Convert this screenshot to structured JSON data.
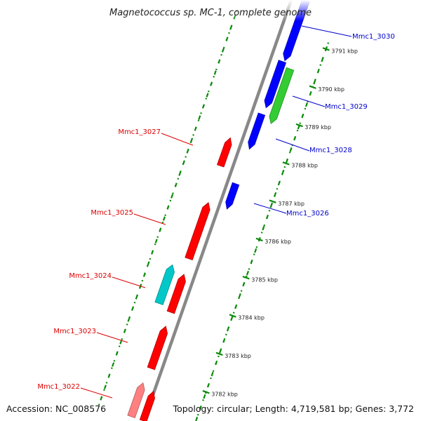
{
  "title": "Magnetococcus sp. MC-1, complete genome",
  "accession": "Accession: NC_008576",
  "topology": "Topology: circular; Length: 4,719,581 bp; Genes: 3,772",
  "colors": {
    "forward": "#0000ff",
    "reverse": "#ff0000",
    "green": "#33cc33",
    "cyan": "#00c8c8",
    "pink": "#ff8080",
    "backbone": "#888888",
    "tick": "#0a8a0a",
    "fwd_label": "#0000cc",
    "rev_label": "#dd0000"
  },
  "ticks": [
    {
      "label": "3782 kbp",
      "kbp": 3782
    },
    {
      "label": "3783 kbp",
      "kbp": 3783
    },
    {
      "label": "3784 kbp",
      "kbp": 3784
    },
    {
      "label": "3785 kbp",
      "kbp": 3785
    },
    {
      "label": "3786 kbp",
      "kbp": 3786
    },
    {
      "label": "3787 kbp",
      "kbp": 3787
    },
    {
      "label": "3788 kbp",
      "kbp": 3788
    },
    {
      "label": "3789 kbp",
      "kbp": 3789
    },
    {
      "label": "3790 kbp",
      "kbp": 3790
    },
    {
      "label": "3791 kbp",
      "kbp": 3791
    }
  ],
  "genes": [
    {
      "name": "Mmc1_3030",
      "strand": "forward",
      "color": "forward",
      "labeled": true
    },
    {
      "name": "",
      "strand": "forward",
      "color": "forward",
      "labeled": false
    },
    {
      "name": "",
      "strand": "forward",
      "color": "forward",
      "labeled": false
    },
    {
      "name": "",
      "strand": "forward",
      "color": "green",
      "labeled": false
    },
    {
      "name": "Mmc1_3029",
      "strand": "forward",
      "color": "forward",
      "labeled": true
    },
    {
      "name": "Mmc1_3028",
      "strand": "forward",
      "color": "forward",
      "labeled": true
    },
    {
      "name": "Mmc1_3027",
      "strand": "reverse",
      "color": "reverse",
      "labeled": true
    },
    {
      "name": "Mmc1_3026",
      "strand": "forward",
      "color": "forward",
      "labeled": true
    },
    {
      "name": "Mmc1_3025",
      "strand": "reverse",
      "color": "reverse",
      "labeled": true
    },
    {
      "name": "Mmc1_3024",
      "strand": "reverse",
      "color": "cyan",
      "labeled": true
    },
    {
      "name": "",
      "strand": "reverse",
      "color": "reverse",
      "labeled": false
    },
    {
      "name": "Mmc1_3023",
      "strand": "reverse",
      "color": "reverse",
      "labeled": true
    },
    {
      "name": "Mmc1_3022",
      "strand": "reverse",
      "color": "pink",
      "labeled": true
    },
    {
      "name": "",
      "strand": "reverse",
      "color": "reverse",
      "labeled": false
    }
  ]
}
